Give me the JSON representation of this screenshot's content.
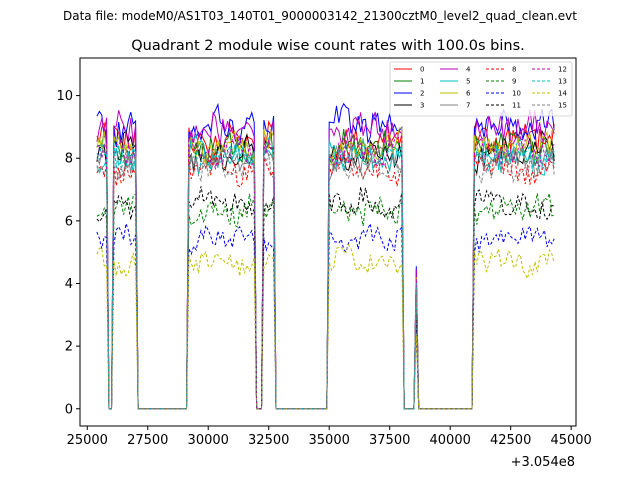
{
  "chart_data": {
    "type": "line",
    "suptitle": "Data file: modeM0/AS1T03_140T01_9000003142_21300cztM0_level2_quad_clean.evt",
    "title": "Quadrant 2 module wise count rates with 100.0s bins.",
    "xlabel": "",
    "ylabel": "",
    "x_offset_label": "+3.054e8",
    "xlim": [
      24700,
      45200
    ],
    "ylim": [
      -0.55,
      11.2
    ],
    "x_ticks": [
      25000,
      27500,
      30000,
      32500,
      35000,
      37500,
      40000,
      42500,
      45000
    ],
    "x_tick_labels": [
      "25000",
      "27500",
      "30000",
      "32500",
      "35000",
      "37500",
      "40000",
      "42500",
      "45000"
    ],
    "y_ticks": [
      0,
      2,
      4,
      6,
      8,
      10
    ],
    "y_tick_labels": [
      "0",
      "2",
      "4",
      "6",
      "8",
      "10"
    ],
    "x_start": 25400,
    "x_end": 44300,
    "bin_width": 100,
    "active_intervals": [
      [
        25400,
        25800
      ],
      [
        26100,
        27000
      ],
      [
        29200,
        31900
      ],
      [
        32300,
        32700
      ],
      [
        35000,
        38000
      ],
      [
        38600,
        38600
      ],
      [
        41000,
        44300
      ]
    ],
    "legend_location": "upper right",
    "series": [
      {
        "name": "0",
        "color": "#ff0000",
        "style": "solid",
        "mean": 8.6
      },
      {
        "name": "1",
        "color": "#008000",
        "style": "solid",
        "mean": 8.3
      },
      {
        "name": "2",
        "color": "#0000ff",
        "style": "solid",
        "mean": 9.1
      },
      {
        "name": "3",
        "color": "#000000",
        "style": "solid",
        "mean": 8.2
      },
      {
        "name": "4",
        "color": "#bf00bf",
        "style": "solid",
        "mean": 8.9
      },
      {
        "name": "5",
        "color": "#00bfbf",
        "style": "solid",
        "mean": 8.1
      },
      {
        "name": "6",
        "color": "#bfbf00",
        "style": "solid",
        "mean": 8.4
      },
      {
        "name": "7",
        "color": "#808080",
        "style": "solid",
        "mean": 7.9
      },
      {
        "name": "8",
        "color": "#ff0000",
        "style": "dashed",
        "mean": 7.7
      },
      {
        "name": "9",
        "color": "#008000",
        "style": "dashed",
        "mean": 6.4
      },
      {
        "name": "10",
        "color": "#0000ff",
        "style": "dashed",
        "mean": 5.4
      },
      {
        "name": "11",
        "color": "#000000",
        "style": "dashed",
        "mean": 6.5
      },
      {
        "name": "12",
        "color": "#bf00bf",
        "style": "dashed",
        "mean": 8.3
      },
      {
        "name": "13",
        "color": "#00bfbf",
        "style": "dashed",
        "mean": 8.0
      },
      {
        "name": "14",
        "color": "#bfbf00",
        "style": "dashed",
        "mean": 4.7
      },
      {
        "name": "15",
        "color": "#808080",
        "style": "dashed",
        "mean": 7.8
      }
    ]
  }
}
